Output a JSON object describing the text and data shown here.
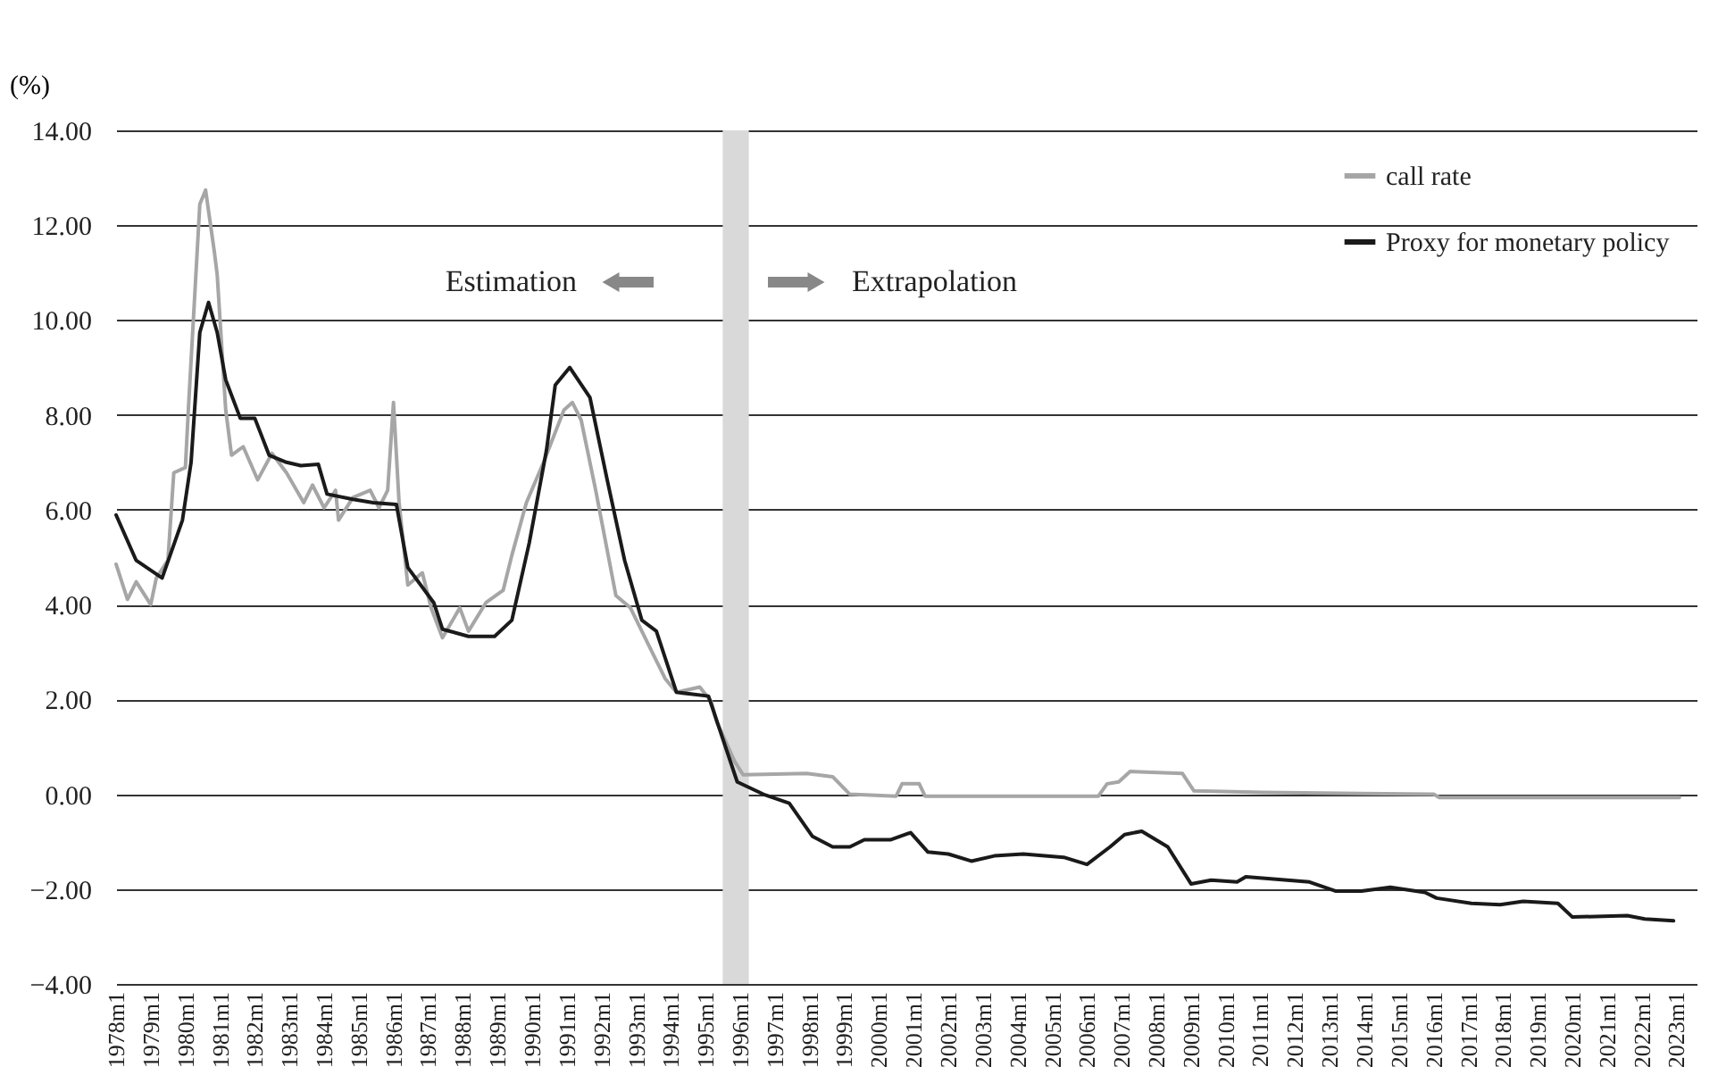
{
  "chart_data": {
    "type": "line",
    "ylabel": "(%)",
    "annotations": [
      "Estimation",
      "Extrapolation"
    ],
    "legend": "top right",
    "grid": "y",
    "line_style": "solid",
    "marker": "none",
    "xlim": [
      "1978-01",
      "2023-08"
    ],
    "xticks": [
      {
        "value": "1978-01",
        "label": "1978m1"
      },
      {
        "value": "1979-01",
        "label": "1979m1"
      },
      {
        "value": "1980-01",
        "label": "1980m1"
      },
      {
        "value": "1981-01",
        "label": "1981m1"
      },
      {
        "value": "1982-01",
        "label": "1982m1"
      },
      {
        "value": "1983-01",
        "label": "1983m1"
      },
      {
        "value": "1984-01",
        "label": "1984m1"
      },
      {
        "value": "1985-01",
        "label": "1985m1"
      },
      {
        "value": "1986-01",
        "label": "1986m1"
      },
      {
        "value": "1987-01",
        "label": "1987m1"
      },
      {
        "value": "1988-01",
        "label": "1988m1"
      },
      {
        "value": "1989-01",
        "label": "1989m1"
      },
      {
        "value": "1990-01",
        "label": "1990m1"
      },
      {
        "value": "1991-01",
        "label": "1991m1"
      },
      {
        "value": "1992-01",
        "label": "1992m1"
      },
      {
        "value": "1993-01",
        "label": "1993m1"
      },
      {
        "value": "1994-01",
        "label": "1994m1"
      },
      {
        "value": "1995-01",
        "label": "1995m1"
      },
      {
        "value": "1996-01",
        "label": "1996m1"
      },
      {
        "value": "1997-01",
        "label": "1997m1"
      },
      {
        "value": "1998-01",
        "label": "1998m1"
      },
      {
        "value": "1999-01",
        "label": "1999m1"
      },
      {
        "value": "2000-01",
        "label": "2000m1"
      },
      {
        "value": "2001-01",
        "label": "2001m1"
      },
      {
        "value": "2002-01",
        "label": "2002m1"
      },
      {
        "value": "2003-01",
        "label": "2003m1"
      },
      {
        "value": "2004-01",
        "label": "2004m1"
      },
      {
        "value": "2005-01",
        "label": "2005m1"
      },
      {
        "value": "2006-01",
        "label": "2006m1"
      },
      {
        "value": "2007-01",
        "label": "2007m1"
      },
      {
        "value": "2008-01",
        "label": "2008m1"
      },
      {
        "value": "2009-01",
        "label": "2009m1"
      },
      {
        "value": "2010-01",
        "label": "2010m1"
      },
      {
        "value": "2011-01",
        "label": "2011m1"
      },
      {
        "value": "2012-01",
        "label": "2012m1"
      },
      {
        "value": "2013-01",
        "label": "2013m1"
      },
      {
        "value": "2014-01",
        "label": "2014m1"
      },
      {
        "value": "2015-01",
        "label": "2015m1"
      },
      {
        "value": "2016-01",
        "label": "2016m1"
      },
      {
        "value": "2017-01",
        "label": "2017m1"
      },
      {
        "value": "2018-01",
        "label": "2018m1"
      },
      {
        "value": "2019-01",
        "label": "2019m1"
      },
      {
        "value": "2020-01",
        "label": "2020m1"
      },
      {
        "value": "2021-01",
        "label": "2021m1"
      },
      {
        "value": "2022-01",
        "label": "2022m1"
      },
      {
        "value": "2023-01",
        "label": "2023m1"
      }
    ],
    "ylim": [
      -4,
      14
    ],
    "yticks": [
      {
        "value": -4,
        "label": "−4.00"
      },
      {
        "value": -2,
        "label": "−2.00"
      },
      {
        "value": 0,
        "label": "0.00"
      },
      {
        "value": 2,
        "label": "2.00"
      },
      {
        "value": 4,
        "label": "4.00"
      },
      {
        "value": 6,
        "label": "6.00"
      },
      {
        "value": 8,
        "label": "8.00"
      },
      {
        "value": 10,
        "label": "10.00"
      },
      {
        "value": 12,
        "label": "12.00"
      },
      {
        "value": 14,
        "label": "14.00"
      }
    ],
    "bands": [
      {
        "axis": "x",
        "from": "1995-07",
        "to": "1996-04",
        "color": "#d9d9d9"
      }
    ],
    "series": [
      {
        "name": "call rate",
        "color": "#a6a6a6",
        "x": [
          "1978-01",
          "1978-05",
          "1978-08",
          "1979-01",
          "1979-03",
          "1979-07",
          "1979-09",
          "1980-01",
          "1980-02",
          "1980-06",
          "1980-08",
          "1980-11",
          "1980-12",
          "1981-03",
          "1981-05",
          "1981-09",
          "1982-02",
          "1982-07",
          "1982-12",
          "1983-06",
          "1983-09",
          "1984-01",
          "1984-05",
          "1984-06",
          "1984-11",
          "1985-05",
          "1985-08",
          "1985-11",
          "1986-01",
          "1986-03",
          "1986-06",
          "1986-11",
          "1987-02",
          "1987-06",
          "1987-12",
          "1988-03",
          "1988-09",
          "1989-03",
          "1989-06",
          "1989-11",
          "1990-05",
          "1990-12",
          "1991-03",
          "1991-06",
          "1991-11",
          "1992-03",
          "1992-06",
          "1992-11",
          "1993-05",
          "1993-11",
          "1994-03",
          "1994-11",
          "1995-03",
          "1995-05",
          "1995-11",
          "1996-02",
          "1997-12",
          "1998-09",
          "1999-03",
          "2000-07",
          "2000-09",
          "2001-03",
          "2001-05",
          "2006-05",
          "2006-08",
          "2006-12",
          "2007-04",
          "2008-10",
          "2009-02",
          "2011-02",
          "2016-01",
          "2016-03",
          "2023-02"
        ],
        "values": [
          4.85,
          4.11,
          4.48,
          4.0,
          4.56,
          4.93,
          6.78,
          6.89,
          8.1,
          12.44,
          12.74,
          11.44,
          10.96,
          8.1,
          7.15,
          7.33,
          6.63,
          7.19,
          6.78,
          6.15,
          6.52,
          6.04,
          6.41,
          5.78,
          6.26,
          6.41,
          6.04,
          6.41,
          8.26,
          6.15,
          4.41,
          4.67,
          3.93,
          3.3,
          3.93,
          3.44,
          4.04,
          4.3,
          5.04,
          6.15,
          7.0,
          8.1,
          8.26,
          7.89,
          6.41,
          5.15,
          4.19,
          3.93,
          3.19,
          2.44,
          2.15,
          2.26,
          1.96,
          1.52,
          0.7,
          0.41,
          0.44,
          0.37,
          0.0,
          -0.04,
          0.22,
          0.22,
          -0.04,
          -0.04,
          0.22,
          0.26,
          0.48,
          0.44,
          0.07,
          0.04,
          0.0,
          -0.07,
          -0.07
        ]
      },
      {
        "name": "Proxy for monetary policy",
        "color": "#1a1a1a",
        "x": [
          "1978-01",
          "1978-08",
          "1979-05",
          "1979-12",
          "1980-03",
          "1980-06",
          "1980-09",
          "1980-12",
          "1981-03",
          "1981-08",
          "1982-01",
          "1982-06",
          "1982-12",
          "1983-05",
          "1983-11",
          "1984-02",
          "1984-11",
          "1985-06",
          "1986-02",
          "1986-06",
          "1987-03",
          "1987-06",
          "1988-03",
          "1988-12",
          "1989-06",
          "1989-12",
          "1990-06",
          "1990-09",
          "1991-02",
          "1991-09",
          "1992-03",
          "1992-09",
          "1993-03",
          "1993-08",
          "1994-03",
          "1995-02",
          "1995-12",
          "1996-09",
          "1997-06",
          "1998-02",
          "1998-09",
          "1999-03",
          "1999-08",
          "2000-05",
          "2000-12",
          "2001-06",
          "2002-01",
          "2002-09",
          "2003-05",
          "2004-03",
          "2005-05",
          "2006-01",
          "2006-09",
          "2007-02",
          "2007-08",
          "2008-05",
          "2009-01",
          "2009-08",
          "2010-05",
          "2010-08",
          "2012-06",
          "2013-03",
          "2013-12",
          "2014-10",
          "2015-10",
          "2016-02",
          "2017-02",
          "2017-12",
          "2018-08",
          "2019-08",
          "2020-01",
          "2021-08",
          "2022-02",
          "2022-12"
        ],
        "values": [
          5.89,
          4.93,
          4.56,
          5.78,
          7.0,
          9.74,
          10.37,
          9.74,
          8.74,
          7.93,
          7.93,
          7.15,
          7.0,
          6.93,
          6.96,
          6.33,
          6.22,
          6.15,
          6.11,
          4.78,
          4.04,
          3.48,
          3.33,
          3.33,
          3.67,
          5.3,
          7.26,
          8.63,
          9.0,
          8.37,
          6.63,
          4.93,
          3.67,
          3.44,
          2.15,
          2.07,
          0.26,
          0.0,
          -0.19,
          -0.89,
          -1.11,
          -1.11,
          -0.96,
          -0.96,
          -0.81,
          -1.22,
          -1.26,
          -1.41,
          -1.3,
          -1.26,
          -1.33,
          -1.48,
          -1.11,
          -0.85,
          -0.78,
          -1.11,
          -1.89,
          -1.81,
          -1.85,
          -1.74,
          -1.85,
          -2.04,
          -2.04,
          -1.96,
          -2.07,
          -2.19,
          -2.3,
          -2.33,
          -2.26,
          -2.3,
          -2.59,
          -2.56,
          -2.63,
          -2.67
        ]
      }
    ]
  }
}
